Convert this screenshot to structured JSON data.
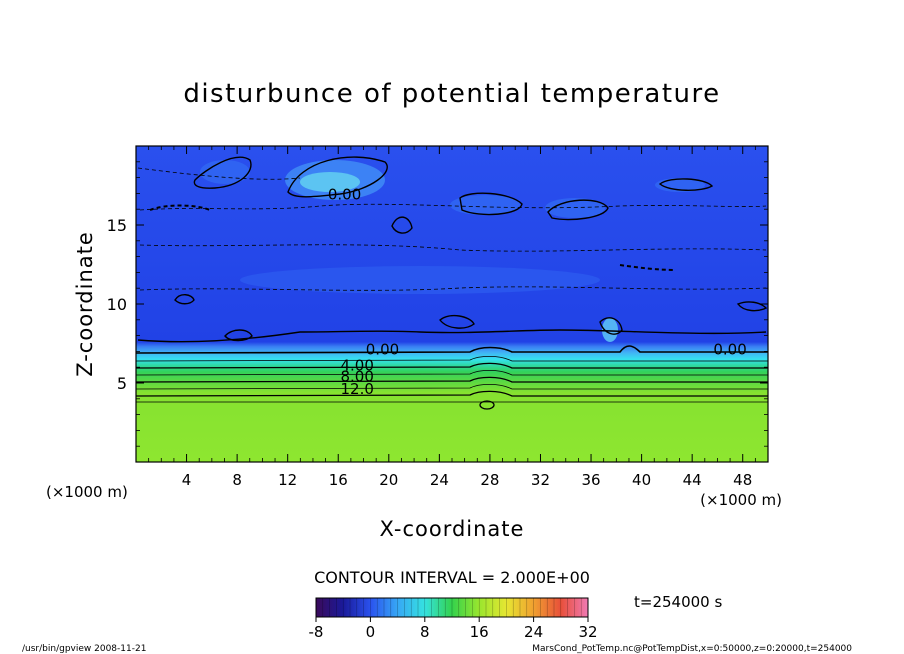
{
  "chart_data": {
    "type": "heatmap",
    "title": "disturbunce of potential temperature",
    "xlabel": "X-coordinate",
    "ylabel": "Z-coordinate",
    "x_unit_left": "(×1000 m)",
    "x_unit_right": "(×1000 m)",
    "xlim": [
      0,
      50
    ],
    "ylim": [
      0,
      20
    ],
    "x_ticks": [
      4,
      8,
      12,
      16,
      20,
      24,
      28,
      32,
      36,
      40,
      44,
      48
    ],
    "y_ticks": [
      5,
      10,
      15
    ],
    "contour_labels": [
      {
        "text": "0.00",
        "x": 16.5,
        "y": 16.6
      },
      {
        "text": "0.00",
        "x": 19.5,
        "y": 6.8
      },
      {
        "text": "0.00",
        "x": 47.0,
        "y": 6.8
      },
      {
        "text": "4.00",
        "x": 17.5,
        "y": 5.8
      },
      {
        "text": "8.00",
        "x": 17.5,
        "y": 5.1
      },
      {
        "text": "12.0",
        "x": 17.5,
        "y": 4.3
      }
    ],
    "contour_interval_text": "CONTOUR INTERVAL = 2.000E+00",
    "time_text": "t=254000 s",
    "colorbar": {
      "min": -8,
      "max": 32,
      "ticks": [
        -8,
        0,
        8,
        16,
        24,
        32
      ]
    }
  },
  "footer": {
    "left": "/usr/bin/gpview   2008-11-21",
    "right": "MarsCond_PotTemp.nc@PotTempDist,x=0:50000,z=0:20000,t=254000"
  },
  "colors": {
    "deep_blue": "#1f3fe6",
    "mid_blue": "#2f63f2",
    "light_blue": "#54b3f4",
    "cyan": "#35e2f0",
    "green": "#33d25a",
    "lime": "#8ee630"
  }
}
